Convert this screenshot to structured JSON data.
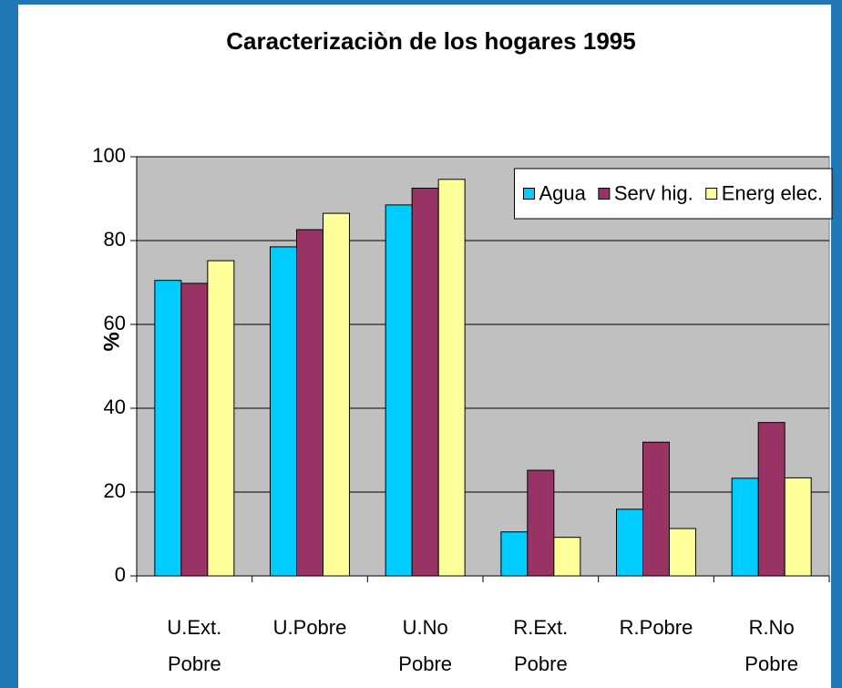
{
  "chart_data": {
    "type": "bar",
    "title": "Caracterizaciòn de los  hogares 1995",
    "ylabel": "%",
    "categories": [
      "U.Ext. Pobre",
      "U.Pobre",
      "U.No Pobre",
      "R.Ext. Pobre",
      "R.Pobre",
      "R.No Pobre"
    ],
    "series": [
      {
        "name": "Agua",
        "color": "#00ccff",
        "values": [
          70.5,
          78.5,
          88.5,
          10.5,
          15.9,
          23.3
        ]
      },
      {
        "name": "Serv hig.",
        "color": "#993366",
        "values": [
          69.8,
          82.6,
          92.5,
          25.2,
          31.9,
          36.6
        ]
      },
      {
        "name": "Energ elec.",
        "color": "#ffff99",
        "values": [
          75.2,
          86.5,
          94.6,
          9.2,
          11.3,
          23.4
        ]
      }
    ],
    "ylim": [
      0,
      100
    ],
    "yticks": [
      0,
      20,
      40,
      60,
      80,
      100
    ],
    "grid": true,
    "legend": "upper right"
  }
}
